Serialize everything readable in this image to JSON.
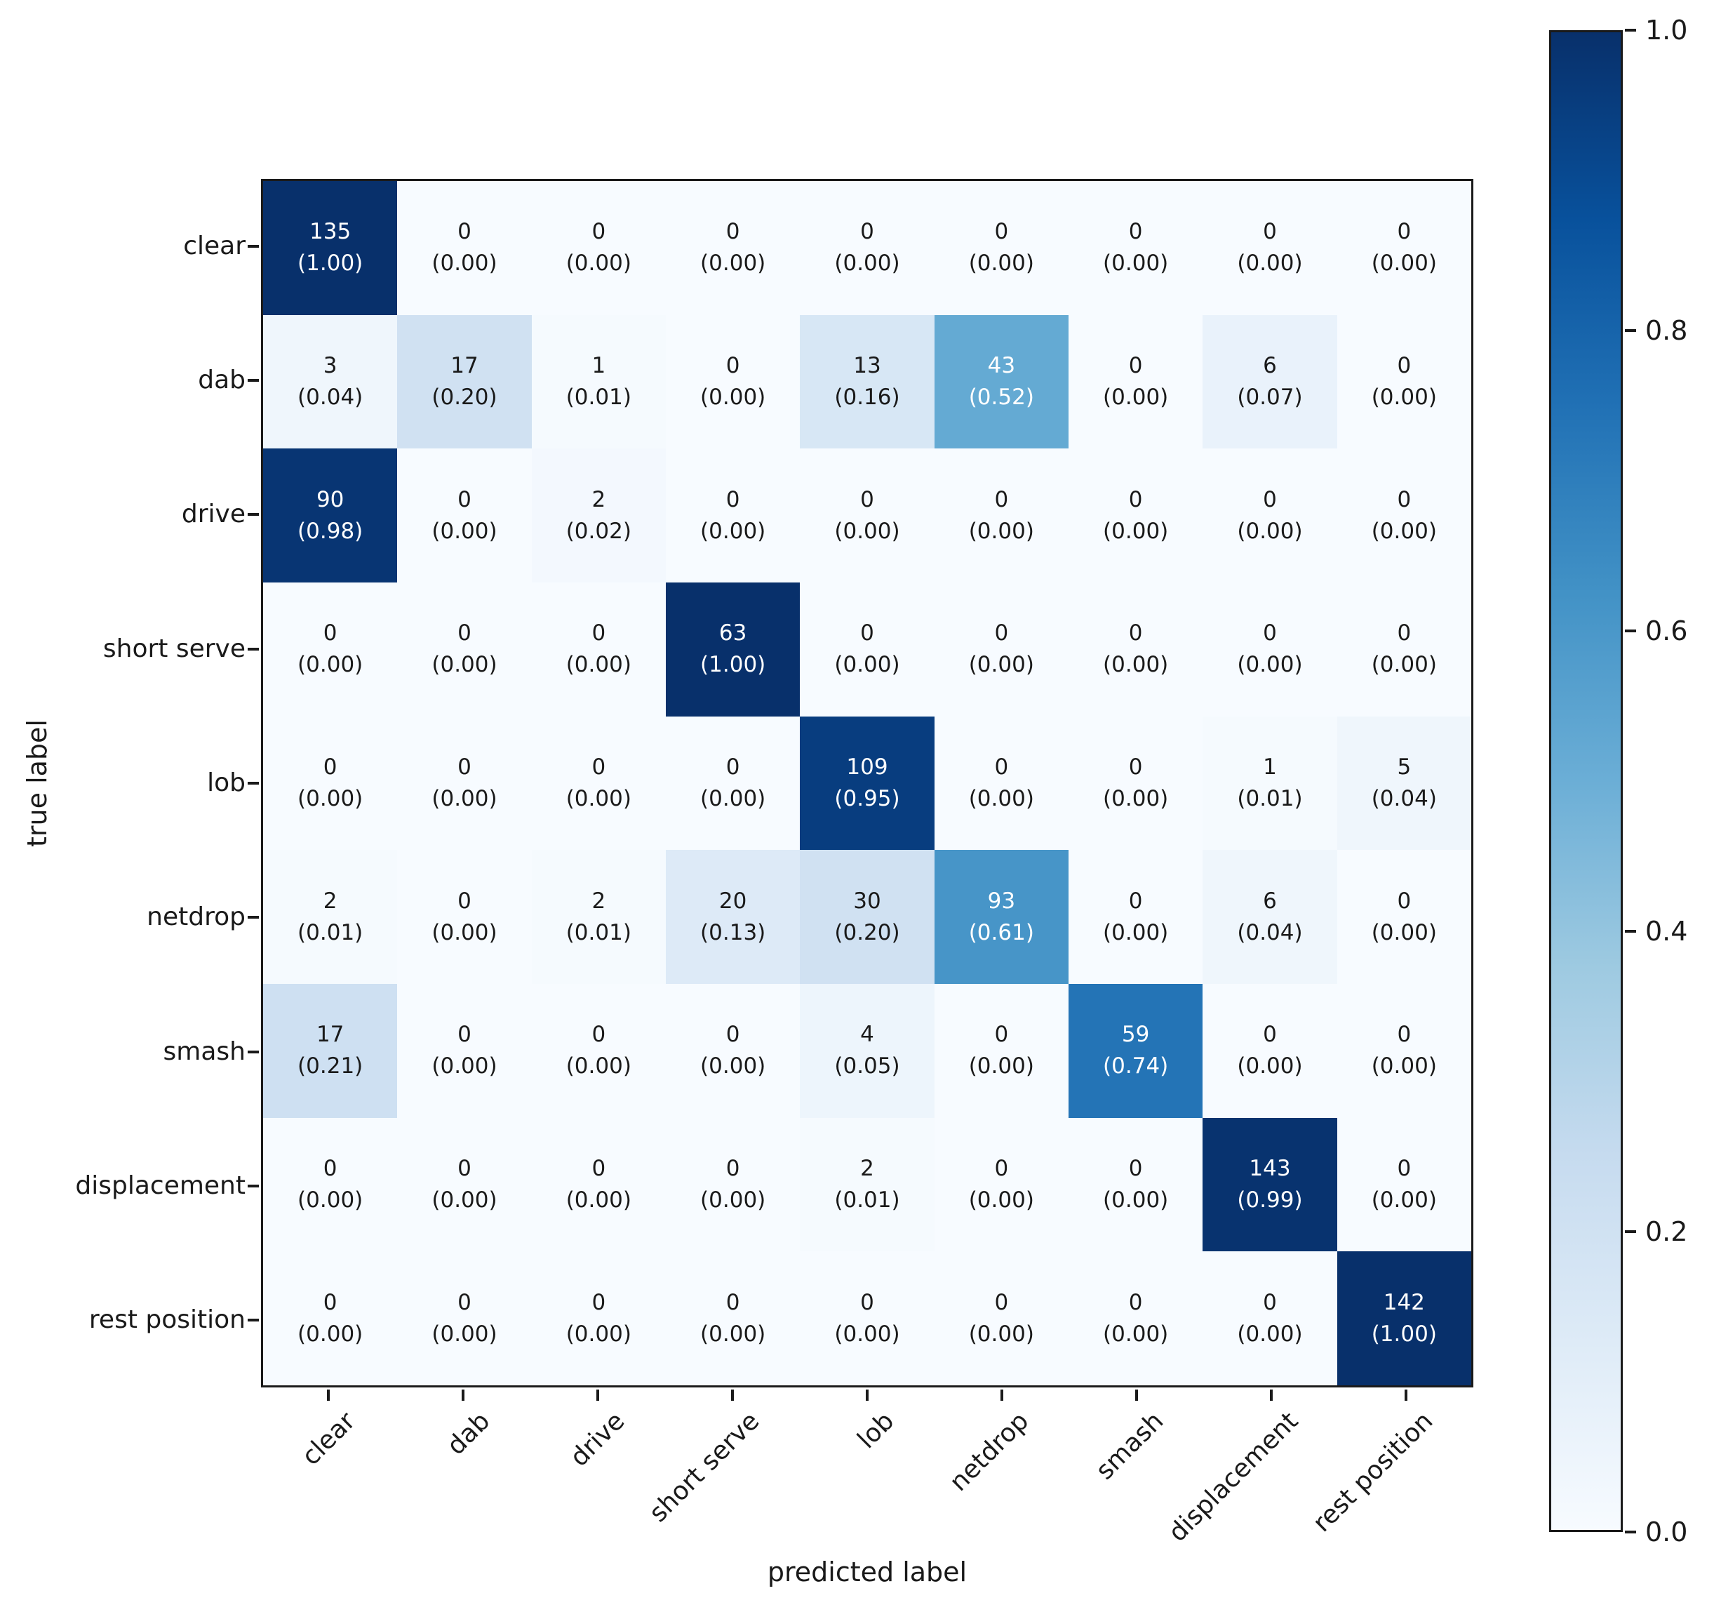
{
  "figure": {
    "background": "#ffffff"
  },
  "chart_data": {
    "type": "heatmap",
    "title": "",
    "xlabel": "predicted label",
    "ylabel": "true label",
    "x_tick_labels": [
      "clear",
      "dab",
      "drive",
      "short serve",
      "lob",
      "netdrop",
      "smash",
      "displacement",
      "rest position"
    ],
    "y_tick_labels": [
      "clear",
      "dab",
      "drive",
      "short serve",
      "lob",
      "netdrop",
      "smash",
      "displacement",
      "rest position"
    ],
    "counts": [
      [
        135,
        0,
        0,
        0,
        0,
        0,
        0,
        0,
        0
      ],
      [
        3,
        17,
        1,
        0,
        13,
        43,
        0,
        6,
        0
      ],
      [
        90,
        0,
        2,
        0,
        0,
        0,
        0,
        0,
        0
      ],
      [
        0,
        0,
        0,
        63,
        0,
        0,
        0,
        0,
        0
      ],
      [
        0,
        0,
        0,
        0,
        109,
        0,
        0,
        1,
        5
      ],
      [
        2,
        0,
        2,
        20,
        30,
        93,
        0,
        6,
        0
      ],
      [
        17,
        0,
        0,
        0,
        4,
        0,
        59,
        0,
        0
      ],
      [
        0,
        0,
        0,
        0,
        2,
        0,
        0,
        143,
        0
      ],
      [
        0,
        0,
        0,
        0,
        0,
        0,
        0,
        0,
        142
      ]
    ],
    "ratios": [
      [
        1.0,
        0.0,
        0.0,
        0.0,
        0.0,
        0.0,
        0.0,
        0.0,
        0.0
      ],
      [
        0.04,
        0.2,
        0.01,
        0.0,
        0.16,
        0.52,
        0.0,
        0.07,
        0.0
      ],
      [
        0.98,
        0.0,
        0.02,
        0.0,
        0.0,
        0.0,
        0.0,
        0.0,
        0.0
      ],
      [
        0.0,
        0.0,
        0.0,
        1.0,
        0.0,
        0.0,
        0.0,
        0.0,
        0.0
      ],
      [
        0.0,
        0.0,
        0.0,
        0.0,
        0.95,
        0.0,
        0.0,
        0.01,
        0.04
      ],
      [
        0.01,
        0.0,
        0.01,
        0.13,
        0.2,
        0.61,
        0.0,
        0.04,
        0.0
      ],
      [
        0.21,
        0.0,
        0.0,
        0.0,
        0.05,
        0.0,
        0.74,
        0.0,
        0.0
      ],
      [
        0.0,
        0.0,
        0.0,
        0.0,
        0.01,
        0.0,
        0.0,
        0.99,
        0.0
      ],
      [
        0.0,
        0.0,
        0.0,
        0.0,
        0.0,
        0.0,
        0.0,
        0.0,
        1.0
      ]
    ],
    "value_range": [
      0,
      1
    ],
    "grid": false,
    "colorbar": {
      "position": "right",
      "tick_labels": [
        "1.0",
        "0.8",
        "0.6",
        "0.4",
        "0.2",
        "0.0"
      ],
      "tick_values": [
        1.0,
        0.8,
        0.6,
        0.4,
        0.2,
        0.0
      ]
    },
    "colormap": {
      "name": "Blues",
      "anchors": [
        "#f7fbff",
        "#deebf7",
        "#c6dbef",
        "#9ecae1",
        "#6baed6",
        "#4292c6",
        "#2171b5",
        "#08519c",
        "#08306b"
      ]
    },
    "text_colors": {
      "dark": "#1a1a1a",
      "light": "#ffffff"
    }
  }
}
